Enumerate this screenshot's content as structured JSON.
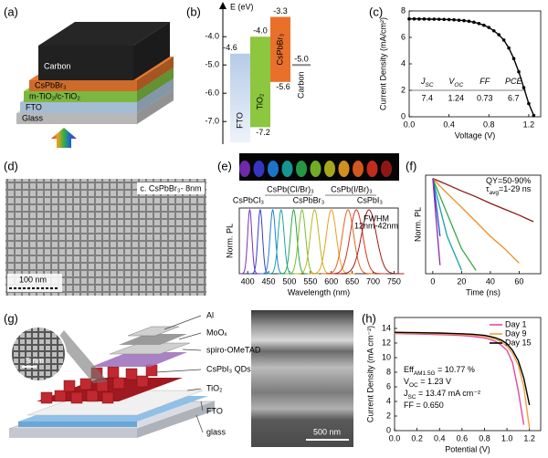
{
  "panels": {
    "labels": [
      "(a)",
      "(b)",
      "(c)",
      "(d)",
      "(e)",
      "(f)",
      "(g)",
      "(h)"
    ]
  },
  "a": {
    "layers": [
      "Glass",
      "FTO",
      "m-TiO₂/c-TiO₂",
      "CsPbBr₃",
      "Carbon"
    ]
  },
  "d": {
    "label": "c. CsPbBr₃- 8nm",
    "scale": "100 nm"
  },
  "g": {
    "layers": [
      "Al",
      "MoOₓ",
      "spiro-OMeTAD",
      "CsPbI₃ QDs",
      "TiO₂",
      "FTO",
      "glass"
    ],
    "scale": "500 nm",
    "inset_scale": "5 nm"
  },
  "chart_data": [
    {
      "type": "band",
      "axis_label": "E (eV)",
      "ylim": [
        -2.8,
        -7.8
      ],
      "yticks": [
        {
          "value": -4,
          "label": "-4.0"
        },
        {
          "value": -5,
          "label": "-5.0"
        },
        {
          "value": -6,
          "label": "-6.0"
        },
        {
          "value": -7,
          "label": "-7.0"
        }
      ],
      "levels": [
        {
          "name": "FTO",
          "color": "#bcd0ea",
          "top": -4.6
        },
        {
          "name": "TiO₂",
          "color": "#8dc63f",
          "top": {
            "value": -4,
            "label": "-4.0"
          },
          "bottom": -7.2
        },
        {
          "name": "CsPbBr₃",
          "color": "#e9702a",
          "top": -3.3,
          "bottom": -5.6
        },
        {
          "name": "Carbon",
          "color": "#888888",
          "style": "line",
          "top": {
            "value": -5,
            "label": "-5.0"
          }
        }
      ]
    },
    {
      "type": "line",
      "x_label": "Voltage (V)",
      "y_label": "Current Density (mA/cm²)",
      "xlim": [
        0,
        1.32
      ],
      "xticks": [
        {
          "value": 0,
          "label": "0.0"
        },
        0.4,
        0.8,
        1.2
      ],
      "ylim": [
        0,
        8
      ],
      "yticks": [
        0,
        2,
        4,
        6,
        8
      ],
      "markers": true,
      "x": [
        0,
        0.05,
        0.1,
        0.15,
        0.2,
        0.25,
        0.3,
        0.35,
        0.4,
        0.45,
        0.5,
        0.55,
        0.6,
        0.65,
        0.7,
        0.75,
        0.8,
        0.85,
        0.9,
        0.95,
        1.0,
        1.05,
        1.1,
        1.15,
        1.2,
        1.25
      ],
      "series": [
        {
          "color": "#000000",
          "values": [
            7.4,
            7.4,
            7.39,
            7.39,
            7.38,
            7.38,
            7.37,
            7.36,
            7.35,
            7.33,
            7.3,
            7.27,
            7.22,
            7.15,
            7.05,
            6.92,
            6.75,
            6.5,
            6.2,
            5.8,
            5.2,
            4.4,
            3.4,
            2.2,
            1.0,
            0.1
          ]
        }
      ],
      "table": {
        "headers": [
          {
            "main": "J",
            "sub": "SC"
          },
          {
            "main": "V",
            "sub": "OC"
          },
          {
            "main": "FF"
          },
          {
            "main": "PCE"
          }
        ],
        "values": [
          7.4,
          1.24,
          0.73,
          6.7
        ]
      }
    },
    {
      "type": "pl",
      "x_label": "Wavelength (nm)",
      "y_label": "Norm. PL",
      "xlim": [
        380,
        760
      ],
      "xticks": [
        400,
        450,
        500,
        550,
        600,
        650,
        700,
        750
      ],
      "composition_labels": [
        "CsPb(Cl/Br)₃",
        "CsPb(I/Br)₃",
        "CsPbCl₃",
        "CsPbBr₃",
        "CsPbI₃"
      ],
      "fwhm_label": [
        "FWHM",
        "12nm-42nm"
      ],
      "series": [
        {
          "color": "#7b2fbf",
          "center": 405,
          "fwhm": 12
        },
        {
          "color": "#3b3bd6",
          "center": 430,
          "fwhm": 13
        },
        {
          "color": "#1f7fe0",
          "center": 460,
          "fwhm": 15
        },
        {
          "color": "#18a6a0",
          "center": 480,
          "fwhm": 17
        },
        {
          "color": "#2aa84a",
          "center": 510,
          "fwhm": 18
        },
        {
          "color": "#7cbf2a",
          "center": 530,
          "fwhm": 20
        },
        {
          "color": "#b8b820",
          "center": 560,
          "fwhm": 24
        },
        {
          "color": "#e8a020",
          "center": 600,
          "fwhm": 28
        },
        {
          "color": "#e86020",
          "center": 640,
          "fwhm": 32
        },
        {
          "color": "#d83020",
          "center": 660,
          "fwhm": 36
        },
        {
          "color": "#a01818",
          "center": 690,
          "fwhm": 42
        }
      ]
    },
    {
      "type": "decay",
      "x_label": "Time (ns)",
      "y_label": "Norm. PL",
      "xlim": [
        -5,
        75
      ],
      "xticks": [
        0,
        20,
        40,
        60
      ],
      "log_y": true,
      "ylim": [
        0.005,
        1.2
      ],
      "annotations": [
        {
          "main": "QY=50-90%"
        },
        {
          "main": "τ",
          "sub": "avg",
          "rest": "=1-29 ns"
        }
      ],
      "x": [
        0,
        2,
        5,
        10,
        20,
        30,
        40,
        50,
        60,
        70
      ],
      "series": [
        {
          "color": "#8b1a1a",
          "values": [
            1,
            0.93,
            0.84,
            0.71,
            0.5,
            0.36,
            0.25,
            0.18,
            0.13,
            0.09
          ]
        },
        {
          "color": "#f08c1e",
          "values": [
            1,
            0.84,
            0.65,
            0.44,
            0.2,
            0.09,
            0.04,
            0.02,
            0.009,
            null
          ]
        },
        {
          "color": "#3aa54a",
          "values": [
            1,
            0.67,
            0.37,
            0.14,
            0.02,
            0.006,
            null,
            null,
            null,
            null
          ]
        },
        {
          "color": "#1aa0a8",
          "values": [
            1,
            0.5,
            0.19,
            0.04,
            0.006,
            null,
            null,
            null,
            null,
            null
          ]
        },
        {
          "color": "#2050c8",
          "values": [
            1,
            0.3,
            0.04,
            null,
            null,
            null,
            null,
            null,
            null,
            null
          ]
        },
        {
          "color": "#8a2ab0",
          "values": [
            1,
            0.14,
            0.008,
            null,
            null,
            null,
            null,
            null,
            null,
            null
          ]
        }
      ]
    },
    {
      "type": "line",
      "x_label": "Potential (V)",
      "y_label": "Current Density (mA cm⁻²)",
      "xlim": [
        0,
        1.3
      ],
      "xticks": [
        {
          "value": 0,
          "label": "0.0"
        },
        0.2,
        0.4,
        0.6,
        0.8,
        {
          "value": 1,
          "label": "1.0"
        },
        1.2
      ],
      "ylim": [
        0,
        15.5
      ],
      "yticks": [
        0,
        2,
        4,
        6,
        8,
        10,
        12,
        14
      ],
      "legend": "upper right",
      "annotations": [
        {
          "main": "Eff",
          "sub": "AM1.5G",
          "rest": " = 10.77 %"
        },
        {
          "main": "V",
          "sub": "OC",
          "rest": " = 1.23 V"
        },
        {
          "main": "J",
          "sub": "SC",
          "rest": " = 13.47 mA cm⁻²"
        },
        {
          "main": "FF = 0.650"
        }
      ],
      "x": [
        0,
        0.1,
        0.2,
        0.3,
        0.4,
        0.5,
        0.6,
        0.7,
        0.8,
        0.85,
        0.9,
        0.95,
        1.0,
        1.05,
        1.1,
        1.15,
        1.2,
        1.25
      ],
      "series": [
        {
          "name": "Day 1",
          "color": "#e8489a",
          "values": [
            13.3,
            13.28,
            13.25,
            13.2,
            13.15,
            13.1,
            13.02,
            12.9,
            12.7,
            12.5,
            12.2,
            11.7,
            11.0,
            9.3,
            5.5,
            0.8,
            null,
            null
          ]
        },
        {
          "name": "Day 9",
          "color": "#f0a040",
          "values": [
            13.4,
            13.38,
            13.35,
            13.32,
            13.28,
            13.23,
            13.17,
            13.08,
            12.92,
            12.75,
            12.5,
            12.15,
            11.55,
            10.6,
            9.0,
            6.0,
            0.3,
            null
          ]
        },
        {
          "name": "Day 15",
          "color": "#000000",
          "values": [
            13.47,
            13.45,
            13.43,
            13.4,
            13.37,
            13.33,
            13.28,
            13.2,
            13.05,
            12.9,
            12.7,
            12.4,
            11.9,
            11.0,
            9.6,
            7.2,
            3.5,
            null
          ]
        }
      ]
    }
  ]
}
